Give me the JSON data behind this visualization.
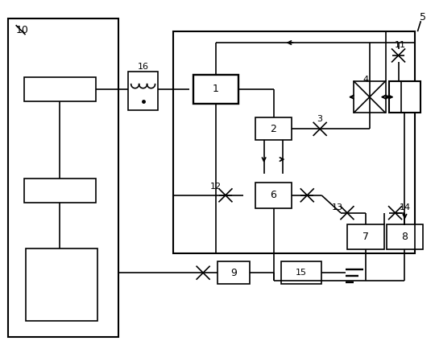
{
  "background_color": "#ffffff",
  "line_color": "#000000",
  "line_width": 1.2
}
